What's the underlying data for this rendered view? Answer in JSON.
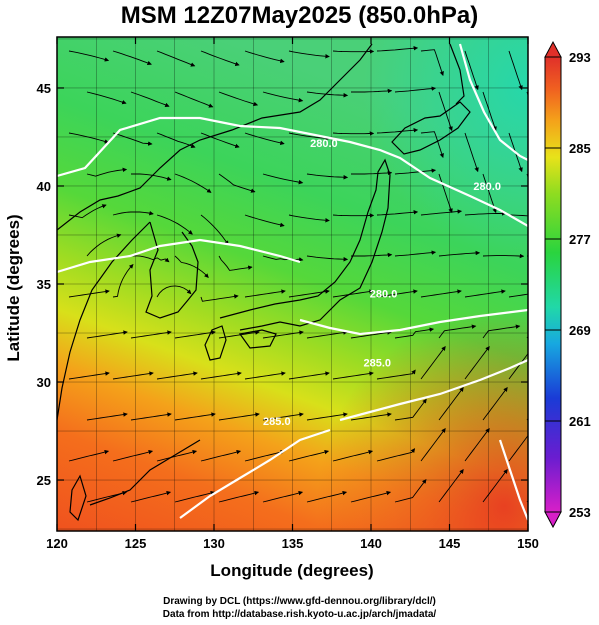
{
  "title": "MSM 12Z07May2025 (850.0hPa)",
  "x_axis": {
    "title": "Longitude (degrees)",
    "ticks": [
      120,
      125,
      130,
      135,
      140,
      145,
      150
    ],
    "range": [
      120,
      150
    ]
  },
  "y_axis": {
    "title": "Latitude  (degrees)",
    "ticks": [
      25,
      30,
      35,
      40,
      45
    ],
    "range": [
      22.4,
      47.6
    ]
  },
  "colorbar": {
    "range": [
      253,
      293
    ],
    "labels": [
      293,
      285,
      277,
      269,
      261,
      253
    ],
    "colors": [
      "#d81fc8",
      "#6a1dd0",
      "#1a3bd6",
      "#17a8e0",
      "#21d8a8",
      "#2ad43e",
      "#8fdc20",
      "#e8e21a",
      "#f4a21a",
      "#f06020",
      "#e0302a"
    ]
  },
  "contour_labels": [
    {
      "text": "280.0",
      "lon": 137.0,
      "lat": 42.0
    },
    {
      "text": "280.0",
      "lon": 140.8,
      "lat": 34.3
    },
    {
      "text": "280.0",
      "lon": 147.4,
      "lat": 39.8
    },
    {
      "text": "285.0",
      "lon": 140.4,
      "lat": 30.8
    },
    {
      "text": "285.0",
      "lon": 134.0,
      "lat": 27.8
    }
  ],
  "credits": {
    "line1": "Drawing by DCL (https://www.gfd-dennou.org/library/dcl/)",
    "line2": "Data from http://database.rish.kyoto-u.ac.jp/arch/jmadata/"
  }
}
